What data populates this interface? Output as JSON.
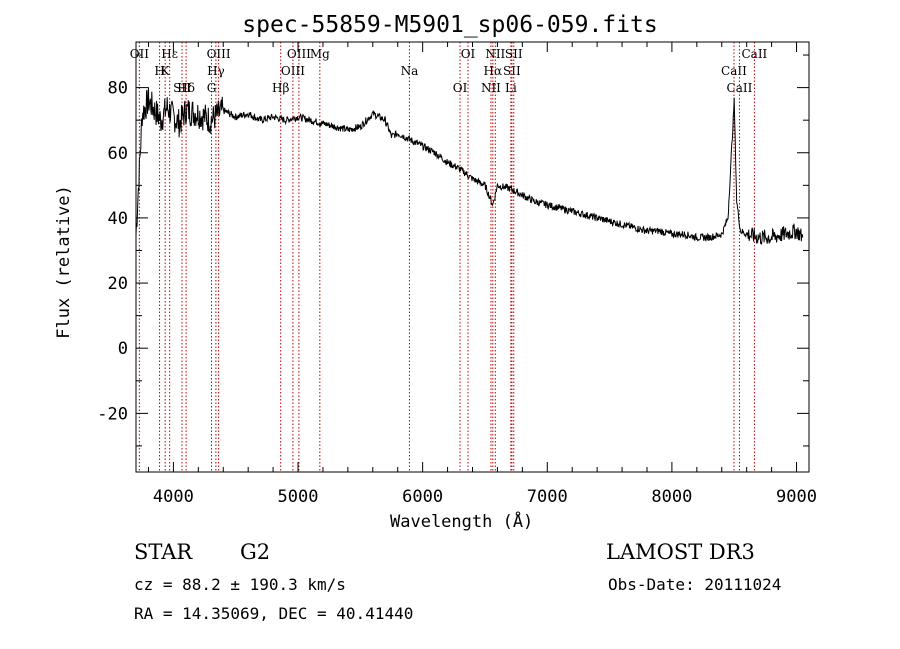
{
  "chart_data": {
    "type": "line",
    "title": "spec-55859-M5901_sp06-059.fits",
    "xlabel": "Wavelength (Å)",
    "ylabel": "Flux (relative)",
    "xlim": [
      3700,
      9100
    ],
    "ylim": [
      -38,
      94
    ],
    "x_ticks": [
      4000,
      5000,
      6000,
      7000,
      8000,
      9000
    ],
    "y_ticks": [
      -20,
      0,
      20,
      40,
      60,
      80
    ],
    "series": [
      {
        "name": "spectrum",
        "x": [
          3700,
          3750,
          3800,
          3850,
          3900,
          3950,
          4000,
          4050,
          4100,
          4200,
          4300,
          4400,
          4500,
          4600,
          4700,
          4800,
          4900,
          5000,
          5100,
          5200,
          5300,
          5400,
          5500,
          5600,
          5700,
          5750,
          5800,
          5900,
          6000,
          6100,
          6200,
          6300,
          6400,
          6500,
          6563,
          6600,
          6700,
          6800,
          6900,
          7000,
          7100,
          7200,
          7300,
          7400,
          7500,
          7600,
          7700,
          7800,
          7900,
          8000,
          8100,
          8200,
          8300,
          8400,
          8450,
          8500,
          8520,
          8550,
          8600,
          8700,
          8800,
          8900,
          9000,
          9050
        ],
        "y": [
          35,
          72,
          76,
          73,
          70,
          74,
          71,
          69,
          73,
          72,
          70,
          73,
          71,
          72,
          70,
          71,
          70,
          71,
          70,
          69,
          68,
          67,
          68,
          72,
          70,
          65,
          66,
          64,
          62,
          60,
          57,
          55,
          52,
          50,
          44,
          50,
          49,
          47,
          45,
          44,
          43,
          42,
          41,
          40,
          39,
          38,
          37,
          36,
          36,
          35,
          35,
          34,
          34,
          35,
          40,
          76,
          45,
          36,
          35,
          34,
          34,
          35,
          36,
          34
        ]
      }
    ],
    "lines": [
      {
        "label": "Hε",
        "x": 3970
      },
      {
        "label": "K",
        "x": 3934
      },
      {
        "label": "Hδ",
        "x": 4102
      },
      {
        "label": "OII",
        "x": 3727
      },
      {
        "label": "H",
        "x": 3889
      },
      {
        "label": "SII",
        "x": 4069
      },
      {
        "label": "OIII",
        "x": 4363
      },
      {
        "label": "Hγ",
        "x": 4341
      },
      {
        "label": "G",
        "x": 4306
      },
      {
        "label": "OIII",
        "x": 5007
      },
      {
        "label": "OIII",
        "x": 4959
      },
      {
        "label": "Hβ",
        "x": 4861
      },
      {
        "label": "Mg",
        "x": 5175
      },
      {
        "label": "Na",
        "x": 5894
      },
      {
        "label": "OI",
        "x": 6300
      },
      {
        "label": "OI",
        "x": 6364
      },
      {
        "label": "Hα",
        "x": 6563
      },
      {
        "label": "NII",
        "x": 6548
      },
      {
        "label": "NII",
        "x": 6583
      },
      {
        "label": "SII",
        "x": 6716
      },
      {
        "label": "Li",
        "x": 6708
      },
      {
        "label": "SII",
        "x": 6731
      },
      {
        "label": "CaII",
        "x": 8498
      },
      {
        "label": "CaII",
        "x": 8542
      },
      {
        "label": "CaII",
        "x": 8662
      }
    ]
  },
  "info": {
    "class": "STAR",
    "subclass": "G2",
    "cz": "cz = 88.2 ± 190.3 km/s",
    "coords": "RA =  14.35069, DEC =  40.41440",
    "survey": "LAMOST DR3",
    "obs_date": "Obs-Date: 20111024"
  }
}
